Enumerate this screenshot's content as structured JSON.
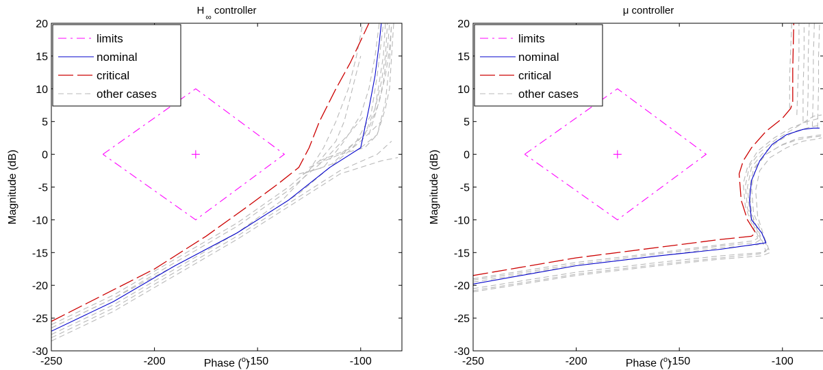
{
  "chart_data": [
    {
      "type": "line",
      "title_main": "H",
      "title_sub": "∞",
      "title_rest": "controller",
      "xlabel": "Phase (",
      "xlabel_sup": "o",
      "xlabel_end": ")",
      "ylabel": "Magnitude (dB)",
      "xlim": [
        -250,
        -80
      ],
      "ylim": [
        -30,
        20
      ],
      "xticks": [
        -250,
        -200,
        -150,
        -100
      ],
      "yticks": [
        -30,
        -25,
        -20,
        -15,
        -10,
        -5,
        0,
        5,
        10,
        15,
        20
      ],
      "grid": false,
      "legend_position": "top-left",
      "legend": [
        "limits",
        "nominal",
        "critical",
        "other cases"
      ],
      "colors": {
        "limits": "#ff00ff",
        "nominal": "#0000cc",
        "critical": "#cc0000",
        "other": "#b8b8b8"
      },
      "limits_center": {
        "x": -180,
        "y": 0
      },
      "limits_polygon": {
        "x": [
          -225,
          -180,
          -137,
          -180,
          -225
        ],
        "y": [
          0,
          10,
          0,
          -10,
          0
        ]
      },
      "series": [
        {
          "key": "nominal",
          "x": [
            -250,
            -220,
            -190,
            -160,
            -135,
            -115,
            -100,
            -96,
            -93,
            -91,
            -90
          ],
          "y": [
            -27,
            -22.5,
            -17,
            -12,
            -7,
            -2,
            1,
            7,
            12,
            17,
            20
          ]
        },
        {
          "key": "critical",
          "x": [
            -250,
            -225,
            -200,
            -175,
            -155,
            -140,
            -130,
            -125,
            -120,
            -112,
            -105,
            -99,
            -96
          ],
          "y": [
            -25.5,
            -21.5,
            -17.5,
            -12.5,
            -8,
            -4.5,
            -2,
            1,
            5,
            10,
            14,
            18,
            20
          ]
        },
        {
          "key": "other",
          "x": [
            -250,
            -220,
            -190,
            -160,
            -130,
            -110,
            -90,
            -82
          ],
          "y": [
            -28.5,
            -24,
            -18.5,
            -13,
            -7,
            -3,
            -1,
            -0.5
          ]
        },
        {
          "key": "other",
          "x": [
            -250,
            -220,
            -190,
            -160,
            -130,
            -110,
            -92,
            -85
          ],
          "y": [
            -28,
            -23.5,
            -18,
            -12.5,
            -6.5,
            -2.5,
            0,
            2
          ]
        },
        {
          "key": "other",
          "x": [
            -250,
            -220,
            -190,
            -160,
            -130,
            -115,
            -100,
            -90
          ],
          "y": [
            -27.5,
            -23,
            -17.5,
            -12,
            -6,
            -2,
            2,
            5
          ]
        },
        {
          "key": "other",
          "x": [
            -250,
            -220,
            -190,
            -160,
            -135,
            -118,
            -106,
            -98
          ],
          "y": [
            -26.5,
            -22,
            -16.5,
            -11,
            -5.5,
            -1,
            3,
            6
          ]
        },
        {
          "key": "other",
          "x": [
            -250,
            -220,
            -190,
            -160,
            -135,
            -120,
            -112,
            -108,
            -104,
            -100
          ],
          "y": [
            -26,
            -21.5,
            -16,
            -10.5,
            -5,
            -1,
            2,
            5,
            10,
            15
          ]
        },
        {
          "key": "other",
          "x": [
            -250,
            -220,
            -190,
            -160,
            -138,
            -126,
            -118,
            -112,
            -106,
            -102,
            -99
          ],
          "y": [
            -26.5,
            -22,
            -17,
            -12,
            -7,
            -3,
            1,
            5,
            10,
            15,
            20
          ]
        },
        {
          "key": "other",
          "x": [
            -130,
            -118,
            -108,
            -100,
            -96,
            -93,
            -91
          ],
          "y": [
            -3,
            -2,
            2,
            6,
            10,
            15,
            20
          ]
        },
        {
          "key": "other",
          "x": [
            -128,
            -114,
            -102,
            -95,
            -92,
            -89
          ],
          "y": [
            -3,
            -1.5,
            2,
            6,
            12,
            20
          ]
        },
        {
          "key": "other",
          "x": [
            -125,
            -110,
            -98,
            -93,
            -90,
            -88,
            -87
          ],
          "y": [
            -2,
            0,
            3,
            7,
            11,
            15,
            20
          ]
        },
        {
          "key": "other",
          "x": [
            -120,
            -104,
            -96,
            -91,
            -88,
            -86,
            -85
          ],
          "y": [
            -1,
            1,
            4,
            8,
            12,
            16,
            20
          ]
        },
        {
          "key": "other",
          "x": [
            -110,
            -98,
            -92,
            -88,
            -86,
            -85,
            -84
          ],
          "y": [
            0,
            1,
            3,
            7,
            10,
            15,
            20
          ]
        },
        {
          "key": "other",
          "x": [
            -100,
            -92,
            -88,
            -86,
            -85
          ],
          "y": [
            1,
            3,
            8,
            14,
            20
          ]
        },
        {
          "key": "other",
          "x": [
            -96,
            -92,
            -89,
            -87,
            -86
          ],
          "y": [
            3,
            7,
            11,
            16,
            20
          ]
        },
        {
          "key": "other",
          "x": [
            -93,
            -91,
            -89,
            -88
          ],
          "y": [
            7,
            11,
            15,
            20
          ]
        }
      ]
    },
    {
      "type": "line",
      "title_main": "μ controller",
      "title_sub": "",
      "title_rest": "",
      "xlabel": "Phase (",
      "xlabel_sup": "o",
      "xlabel_end": ")",
      "ylabel": "Magnitude (dB)",
      "xlim": [
        -250,
        -80
      ],
      "ylim": [
        -30,
        20
      ],
      "xticks": [
        -250,
        -200,
        -150,
        -100
      ],
      "yticks": [
        -30,
        -25,
        -20,
        -15,
        -10,
        -5,
        0,
        5,
        10,
        15,
        20
      ],
      "grid": false,
      "legend_position": "top-left",
      "legend": [
        "limits",
        "nominal",
        "critical",
        "other cases"
      ],
      "colors": {
        "limits": "#ff00ff",
        "nominal": "#0000cc",
        "critical": "#cc0000",
        "other": "#b8b8b8"
      },
      "limits_center": {
        "x": -180,
        "y": 0
      },
      "limits_polygon": {
        "x": [
          -225,
          -180,
          -137,
          -180,
          -225
        ],
        "y": [
          0,
          10,
          0,
          -10,
          0
        ]
      },
      "series": [
        {
          "key": "nominal",
          "x": [
            -250,
            -200,
            -160,
            -130,
            -110,
            -108,
            -110,
            -115,
            -116,
            -115,
            -111,
            -105,
            -98,
            -90,
            -85,
            -82
          ],
          "y": [
            -19.8,
            -17,
            -15.5,
            -14.5,
            -13.6,
            -13.5,
            -12,
            -10,
            -7,
            -4,
            -1,
            1.5,
            3,
            3.8,
            4,
            4
          ]
        },
        {
          "key": "critical",
          "x": [
            -250,
            -200,
            -160,
            -130,
            -115,
            -113,
            -117,
            -120,
            -121,
            -119,
            -115,
            -108,
            -100,
            -96,
            -95,
            -95,
            -94.5
          ],
          "y": [
            -18.5,
            -15.8,
            -14.2,
            -13,
            -12.5,
            -12,
            -10,
            -7,
            -3,
            -1,
            1,
            3.5,
            5.5,
            7,
            8,
            13,
            20
          ]
        },
        {
          "key": "other",
          "x": [
            -250,
            -200,
            -160,
            -130,
            -110,
            -107,
            -110,
            -114,
            -115,
            -113,
            -108,
            -100,
            -92,
            -85,
            -81
          ],
          "y": [
            -20.5,
            -18,
            -16.5,
            -15.5,
            -15,
            -14.5,
            -12,
            -9,
            -5,
            -2,
            0,
            1.5,
            2.5,
            2.8,
            3
          ]
        },
        {
          "key": "other",
          "x": [
            -250,
            -200,
            -160,
            -130,
            -110,
            -106,
            -109,
            -112,
            -113,
            -111,
            -106,
            -98,
            -90,
            -84,
            -81
          ],
          "y": [
            -21,
            -18.5,
            -17,
            -16,
            -15.5,
            -15,
            -12.5,
            -9.5,
            -5.5,
            -2.5,
            -0.5,
            1,
            2,
            2.3,
            2.5
          ]
        },
        {
          "key": "other",
          "x": [
            -250,
            -200,
            -160,
            -130,
            -114,
            -112,
            -115,
            -118,
            -119,
            -117,
            -112,
            -104,
            -96,
            -88,
            -82
          ],
          "y": [
            -19,
            -16.5,
            -15,
            -13.8,
            -13.2,
            -12.8,
            -10.5,
            -8,
            -4.5,
            -2,
            0.5,
            2.5,
            4,
            5,
            5.5
          ]
        },
        {
          "key": "other",
          "x": [
            -250,
            -200,
            -160,
            -130,
            -112,
            -110,
            -113,
            -116,
            -117,
            -115,
            -110,
            -102,
            -94,
            -86,
            -81
          ],
          "y": [
            -19.5,
            -17,
            -15.5,
            -14.3,
            -13.8,
            -13.4,
            -11,
            -8.5,
            -5,
            -2,
            0,
            2,
            3.5,
            4.2,
            4.5
          ]
        },
        {
          "key": "other",
          "x": [
            -250,
            -200,
            -160,
            -130,
            -111,
            -108,
            -111,
            -115,
            -116,
            -114,
            -109,
            -101,
            -93,
            -86,
            -81
          ],
          "y": [
            -20.8,
            -18.3,
            -16.8,
            -15.8,
            -15.2,
            -14.8,
            -12.2,
            -9,
            -5.2,
            -2.2,
            -0.2,
            1.3,
            2.2,
            2.6,
            2.8
          ]
        },
        {
          "key": "other",
          "x": [
            -250,
            -200,
            -160,
            -130,
            -113,
            -111,
            -114,
            -117,
            -118,
            -116,
            -111,
            -103,
            -95,
            -89,
            -85,
            -81
          ],
          "y": [
            -19.2,
            -16.8,
            -15.2,
            -14,
            -13.5,
            -13.1,
            -10.8,
            -8.2,
            -4.8,
            -1.8,
            0.3,
            2.3,
            3.8,
            5,
            5.8,
            6
          ]
        },
        {
          "key": "other",
          "x": [
            -96.5,
            -96.5,
            -96,
            -95.5
          ],
          "y": [
            7,
            12,
            16,
            20
          ]
        },
        {
          "key": "other",
          "x": [
            -93,
            -92.5,
            -92,
            -92
          ],
          "y": [
            6,
            11,
            15,
            20
          ]
        },
        {
          "key": "other",
          "x": [
            -90,
            -90,
            -89.5,
            -89.5
          ],
          "y": [
            5,
            10,
            15,
            20
          ]
        },
        {
          "key": "other",
          "x": [
            -88,
            -87.5,
            -87.5,
            -87
          ],
          "y": [
            4.5,
            10,
            15,
            20
          ]
        },
        {
          "key": "other",
          "x": [
            -85.5,
            -85,
            -85,
            -84.5
          ],
          "y": [
            4.2,
            10,
            15,
            20
          ]
        },
        {
          "key": "other",
          "x": [
            -83,
            -82.5,
            -82.5,
            -82
          ],
          "y": [
            4,
            10,
            15,
            20
          ]
        }
      ]
    }
  ]
}
